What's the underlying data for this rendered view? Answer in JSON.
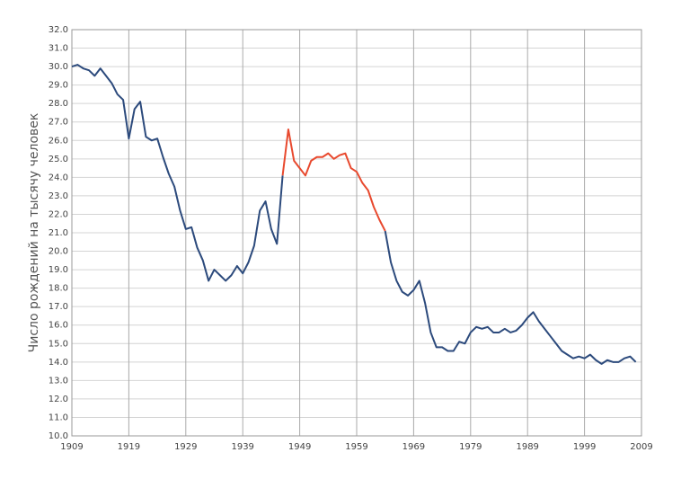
{
  "chart_data": {
    "type": "line",
    "ylabel": "Число рождений на тысячу человек",
    "x": [
      1909,
      1910,
      1911,
      1912,
      1913,
      1914,
      1915,
      1916,
      1917,
      1918,
      1919,
      1920,
      1921,
      1922,
      1923,
      1924,
      1925,
      1926,
      1927,
      1928,
      1929,
      1930,
      1931,
      1932,
      1933,
      1934,
      1935,
      1936,
      1937,
      1938,
      1939,
      1940,
      1941,
      1942,
      1943,
      1944,
      1945,
      1946,
      1947,
      1948,
      1949,
      1950,
      1951,
      1952,
      1953,
      1954,
      1955,
      1956,
      1957,
      1958,
      1959,
      1960,
      1961,
      1962,
      1963,
      1964,
      1965,
      1966,
      1967,
      1968,
      1969,
      1970,
      1971,
      1972,
      1973,
      1974,
      1975,
      1976,
      1977,
      1978,
      1979,
      1980,
      1981,
      1982,
      1983,
      1984,
      1985,
      1986,
      1987,
      1988,
      1989,
      1990,
      1991,
      1992,
      1993,
      1994,
      1995,
      1996,
      1997,
      1998,
      1999,
      2000,
      2001,
      2002,
      2003,
      2004,
      2005,
      2006,
      2007,
      2008
    ],
    "series": [
      {
        "color": "#2c4a7c",
        "values": [
          30.0,
          30.1,
          29.9,
          29.8,
          29.5,
          29.9,
          29.5,
          29.1,
          28.5,
          28.2,
          26.1,
          27.7,
          28.1,
          26.2,
          26.0,
          26.1,
          25.1,
          24.2,
          23.5,
          22.2,
          21.2,
          21.3,
          20.2,
          19.5,
          18.4,
          19.0,
          18.7,
          18.4,
          18.7,
          19.2,
          18.8,
          19.4,
          20.3,
          22.2,
          22.7,
          21.2,
          20.4,
          24.1,
          null,
          null,
          null,
          null,
          null,
          null,
          null,
          null,
          null,
          null,
          null,
          null,
          null,
          null,
          null,
          null,
          null,
          21.1,
          19.4,
          18.4,
          17.8,
          17.6,
          17.9,
          18.4,
          17.2,
          15.6,
          14.8,
          14.8,
          14.6,
          14.6,
          15.1,
          15.0,
          15.6,
          15.9,
          15.8,
          15.9,
          15.6,
          15.6,
          15.8,
          15.6,
          15.7,
          16.0,
          16.4,
          16.7,
          16.2,
          15.8,
          15.4,
          15.0,
          14.6,
          14.4,
          14.2,
          14.3,
          14.2,
          14.4,
          14.1,
          13.9,
          14.1,
          14.0,
          14.0,
          14.2,
          14.3,
          14.0
        ]
      },
      {
        "color": "#e8492e",
        "values": [
          null,
          null,
          null,
          null,
          null,
          null,
          null,
          null,
          null,
          null,
          null,
          null,
          null,
          null,
          null,
          null,
          null,
          null,
          null,
          null,
          null,
          null,
          null,
          null,
          null,
          null,
          null,
          null,
          null,
          null,
          null,
          null,
          null,
          null,
          null,
          null,
          null,
          24.1,
          26.6,
          24.9,
          24.5,
          24.1,
          24.9,
          25.1,
          25.1,
          25.3,
          25.0,
          25.2,
          25.3,
          24.5,
          24.3,
          23.7,
          23.3,
          22.4,
          21.7,
          21.1,
          null,
          null,
          null,
          null,
          null,
          null,
          null,
          null,
          null,
          null,
          null,
          null,
          null,
          null,
          null,
          null,
          null,
          null,
          null,
          null,
          null,
          null,
          null,
          null,
          null,
          null,
          null,
          null,
          null,
          null,
          null,
          null,
          null,
          null,
          null,
          null,
          null,
          null,
          null,
          null,
          null,
          null,
          null,
          null
        ]
      }
    ],
    "xlim": [
      1909,
      2009
    ],
    "xticks": [
      1909,
      1919,
      1929,
      1939,
      1949,
      1959,
      1969,
      1979,
      1989,
      1999,
      2009
    ],
    "ylim": [
      10,
      32
    ],
    "yticks": [
      {
        "value": 10,
        "label": "10.0"
      },
      {
        "value": 11,
        "label": "11.0"
      },
      {
        "value": 12,
        "label": "12.0"
      },
      {
        "value": 13,
        "label": "13.0"
      },
      {
        "value": 14,
        "label": "14.0"
      },
      {
        "value": 15,
        "label": "15.0"
      },
      {
        "value": 16,
        "label": "16.0"
      },
      {
        "value": 17,
        "label": "17.0"
      },
      {
        "value": 18,
        "label": "18.0"
      },
      {
        "value": 19,
        "label": "19.0"
      },
      {
        "value": 20,
        "label": "20.0"
      },
      {
        "value": 21,
        "label": "21.0"
      },
      {
        "value": 22,
        "label": "22.0"
      },
      {
        "value": 23,
        "label": "23.0"
      },
      {
        "value": 24,
        "label": "24.0"
      },
      {
        "value": 25,
        "label": "25.0"
      },
      {
        "value": 26,
        "label": "26.0"
      },
      {
        "value": 27,
        "label": "27.0"
      },
      {
        "value": 28,
        "label": "28.0"
      },
      {
        "value": 29,
        "label": "29.0"
      },
      {
        "value": 30,
        "label": "30.0"
      },
      {
        "value": 31,
        "label": "31.0"
      },
      {
        "value": 32,
        "label": "32.0"
      }
    ],
    "grid": true
  }
}
